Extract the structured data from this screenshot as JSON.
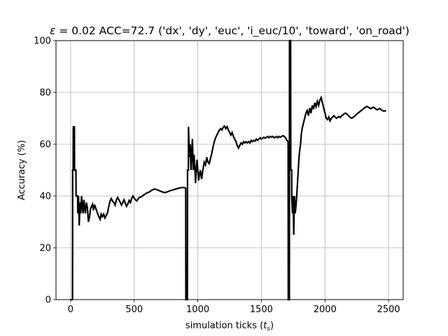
{
  "chart_data": {
    "type": "line",
    "title": "ε = 0.02 ACC=72.7 ('dx', 'dy', 'euc', 'i_euc/10', 'toward', 'on_road')",
    "xlabel": "simulation ticks (t_s)",
    "ylabel": "Accuracy (%)",
    "xlim": [
      -115,
      2615
    ],
    "ylim": [
      0,
      100
    ],
    "xticks": [
      0,
      500,
      1000,
      1500,
      2000,
      2500
    ],
    "yticks": [
      0,
      20,
      40,
      60,
      80,
      100
    ],
    "grid": true,
    "colors": {
      "line": "#000000",
      "grid": "#b0b0b0",
      "axes": "#000000"
    },
    "series": [
      {
        "values": [
          [
            0,
            0
          ],
          [
            15,
            0
          ],
          [
            16,
            50
          ],
          [
            20,
            50
          ],
          [
            21,
            66.7
          ],
          [
            30,
            66.7
          ],
          [
            31,
            50
          ],
          [
            42,
            50
          ],
          [
            43,
            40
          ],
          [
            55,
            40
          ],
          [
            56,
            33.3
          ],
          [
            62,
            40
          ],
          [
            68,
            28.6
          ],
          [
            74,
            37.5
          ],
          [
            80,
            33.3
          ],
          [
            86,
            40
          ],
          [
            92,
            36.4
          ],
          [
            98,
            33.3
          ],
          [
            104,
            38.5
          ],
          [
            110,
            35.7
          ],
          [
            116,
            33.3
          ],
          [
            124,
            37.5
          ],
          [
            132,
            35.3
          ],
          [
            140,
            30
          ],
          [
            148,
            31.8
          ],
          [
            156,
            34.8
          ],
          [
            164,
            36
          ],
          [
            172,
            36.8
          ],
          [
            180,
            34.5
          ],
          [
            188,
            36.7
          ],
          [
            196,
            35.5
          ],
          [
            204,
            34.4
          ],
          [
            212,
            33.3
          ],
          [
            222,
            32
          ],
          [
            232,
            31
          ],
          [
            240,
            33
          ],
          [
            250,
            32
          ],
          [
            260,
            33
          ],
          [
            270,
            31.5
          ],
          [
            280,
            32.5
          ],
          [
            290,
            33.5
          ],
          [
            300,
            36
          ],
          [
            310,
            38
          ],
          [
            320,
            39
          ],
          [
            330,
            38
          ],
          [
            340,
            37.5
          ],
          [
            350,
            36.5
          ],
          [
            360,
            38.5
          ],
          [
            370,
            39.5
          ],
          [
            380,
            38.5
          ],
          [
            390,
            37.5
          ],
          [
            400,
            36.5
          ],
          [
            410,
            37.5
          ],
          [
            420,
            38.5
          ],
          [
            430,
            37.2
          ],
          [
            440,
            36
          ],
          [
            450,
            37
          ],
          [
            460,
            38.3
          ],
          [
            470,
            37.5
          ],
          [
            480,
            39
          ],
          [
            490,
            40
          ],
          [
            500,
            39.2
          ],
          [
            510,
            38.5
          ],
          [
            520,
            38.1
          ],
          [
            530,
            38.8
          ],
          [
            540,
            39.4
          ],
          [
            560,
            39.8
          ],
          [
            580,
            40.6
          ],
          [
            600,
            41.2
          ],
          [
            620,
            41.6
          ],
          [
            640,
            42.3
          ],
          [
            660,
            42.7
          ],
          [
            680,
            42.4
          ],
          [
            700,
            42
          ],
          [
            720,
            41.6
          ],
          [
            740,
            41.3
          ],
          [
            760,
            41.6
          ],
          [
            780,
            42
          ],
          [
            800,
            42.3
          ],
          [
            820,
            42.6
          ],
          [
            840,
            42.9
          ],
          [
            860,
            43.1
          ],
          [
            880,
            43.3
          ],
          [
            895,
            43.2
          ],
          [
            905,
            43
          ],
          [
            906,
            0
          ],
          [
            918,
            0
          ],
          [
            919,
            50
          ],
          [
            926,
            50
          ],
          [
            927,
            66.7
          ],
          [
            934,
            55
          ],
          [
            940,
            60
          ],
          [
            946,
            50
          ],
          [
            952,
            57
          ],
          [
            958,
            62
          ],
          [
            964,
            50
          ],
          [
            970,
            56
          ],
          [
            976,
            52
          ],
          [
            982,
            45
          ],
          [
            988,
            50
          ],
          [
            994,
            54
          ],
          [
            1000,
            50
          ],
          [
            1006,
            46
          ],
          [
            1012,
            48
          ],
          [
            1020,
            50
          ],
          [
            1030,
            46.5
          ],
          [
            1040,
            50
          ],
          [
            1050,
            53
          ],
          [
            1060,
            52
          ],
          [
            1070,
            55
          ],
          [
            1080,
            53
          ],
          [
            1090,
            52.5
          ],
          [
            1100,
            54.5
          ],
          [
            1110,
            56.5
          ],
          [
            1120,
            59
          ],
          [
            1130,
            61
          ],
          [
            1140,
            62.5
          ],
          [
            1150,
            63.5
          ],
          [
            1160,
            64.5
          ],
          [
            1170,
            65.5
          ],
          [
            1180,
            66
          ],
          [
            1190,
            65.5
          ],
          [
            1200,
            66.5
          ],
          [
            1210,
            67
          ],
          [
            1220,
            66
          ],
          [
            1230,
            66.8
          ],
          [
            1240,
            65.5
          ],
          [
            1250,
            64.5
          ],
          [
            1260,
            63.5
          ],
          [
            1270,
            64.5
          ],
          [
            1280,
            63
          ],
          [
            1290,
            62
          ],
          [
            1300,
            61
          ],
          [
            1310,
            59.5
          ],
          [
            1320,
            58.5
          ],
          [
            1330,
            59.5
          ],
          [
            1340,
            60.5
          ],
          [
            1350,
            60
          ],
          [
            1360,
            61
          ],
          [
            1370,
            60.5
          ],
          [
            1380,
            61
          ],
          [
            1390,
            60.5
          ],
          [
            1400,
            61
          ],
          [
            1410,
            60.5
          ],
          [
            1420,
            61.5
          ],
          [
            1430,
            61
          ],
          [
            1440,
            61.5
          ],
          [
            1450,
            61.2
          ],
          [
            1460,
            62
          ],
          [
            1470,
            61.5
          ],
          [
            1480,
            62
          ],
          [
            1490,
            62.5
          ],
          [
            1500,
            62
          ],
          [
            1510,
            62.3
          ],
          [
            1520,
            62.7
          ],
          [
            1530,
            62.3
          ],
          [
            1540,
            62.7
          ],
          [
            1550,
            63
          ],
          [
            1560,
            62.5
          ],
          [
            1570,
            63
          ],
          [
            1580,
            62.7
          ],
          [
            1590,
            63
          ],
          [
            1600,
            62.5
          ],
          [
            1610,
            62.7
          ],
          [
            1620,
            63
          ],
          [
            1630,
            62.5
          ],
          [
            1640,
            63
          ],
          [
            1650,
            62.7
          ],
          [
            1660,
            63
          ],
          [
            1670,
            63.3
          ],
          [
            1680,
            63
          ],
          [
            1690,
            62.5
          ],
          [
            1700,
            61.5
          ],
          [
            1710,
            61
          ],
          [
            1711,
            0
          ],
          [
            1720,
            0
          ],
          [
            1721,
            100
          ],
          [
            1730,
            100
          ],
          [
            1731,
            50
          ],
          [
            1738,
            50
          ],
          [
            1739,
            40
          ],
          [
            1744,
            33.3
          ],
          [
            1750,
            40
          ],
          [
            1754,
            25
          ],
          [
            1760,
            40
          ],
          [
            1766,
            33.3
          ],
          [
            1772,
            36
          ],
          [
            1778,
            40
          ],
          [
            1784,
            45
          ],
          [
            1790,
            50
          ],
          [
            1796,
            55
          ],
          [
            1802,
            58
          ],
          [
            1808,
            60
          ],
          [
            1814,
            64
          ],
          [
            1820,
            66
          ],
          [
            1830,
            68
          ],
          [
            1840,
            70
          ],
          [
            1850,
            72
          ],
          [
            1860,
            73
          ],
          [
            1870,
            71
          ],
          [
            1880,
            74
          ],
          [
            1890,
            72
          ],
          [
            1900,
            75
          ],
          [
            1910,
            73.5
          ],
          [
            1920,
            76
          ],
          [
            1930,
            74.5
          ],
          [
            1940,
            76.5
          ],
          [
            1950,
            75
          ],
          [
            1960,
            77
          ],
          [
            1970,
            78
          ],
          [
            1980,
            76
          ],
          [
            1990,
            74
          ],
          [
            2000,
            72
          ],
          [
            2010,
            70
          ],
          [
            2020,
            69.5
          ],
          [
            2030,
            70.5
          ],
          [
            2040,
            69
          ],
          [
            2050,
            70
          ],
          [
            2060,
            70.5
          ],
          [
            2070,
            71
          ],
          [
            2080,
            70.5
          ],
          [
            2090,
            70
          ],
          [
            2100,
            70.3
          ],
          [
            2110,
            70.7
          ],
          [
            2120,
            70.3
          ],
          [
            2130,
            71
          ],
          [
            2140,
            71.3
          ],
          [
            2150,
            71.7
          ],
          [
            2160,
            72
          ],
          [
            2170,
            71.7
          ],
          [
            2180,
            71.3
          ],
          [
            2190,
            70.7
          ],
          [
            2200,
            70.3
          ],
          [
            2210,
            70
          ],
          [
            2220,
            70.3
          ],
          [
            2230,
            70.7
          ],
          [
            2240,
            71.2
          ],
          [
            2250,
            71.6
          ],
          [
            2260,
            72
          ],
          [
            2270,
            72.4
          ],
          [
            2280,
            72.8
          ],
          [
            2290,
            73.2
          ],
          [
            2300,
            73.6
          ],
          [
            2310,
            74
          ],
          [
            2320,
            74.3
          ],
          [
            2330,
            74.6
          ],
          [
            2340,
            74.3
          ],
          [
            2350,
            74
          ],
          [
            2360,
            73.7
          ],
          [
            2370,
            74
          ],
          [
            2380,
            74.3
          ],
          [
            2390,
            74
          ],
          [
            2400,
            73.6
          ],
          [
            2410,
            73.3
          ],
          [
            2420,
            73.5
          ],
          [
            2430,
            73.8
          ],
          [
            2440,
            73.4
          ],
          [
            2450,
            73
          ],
          [
            2460,
            72.8
          ],
          [
            2470,
            72.9
          ],
          [
            2480,
            72.7
          ]
        ]
      }
    ]
  }
}
